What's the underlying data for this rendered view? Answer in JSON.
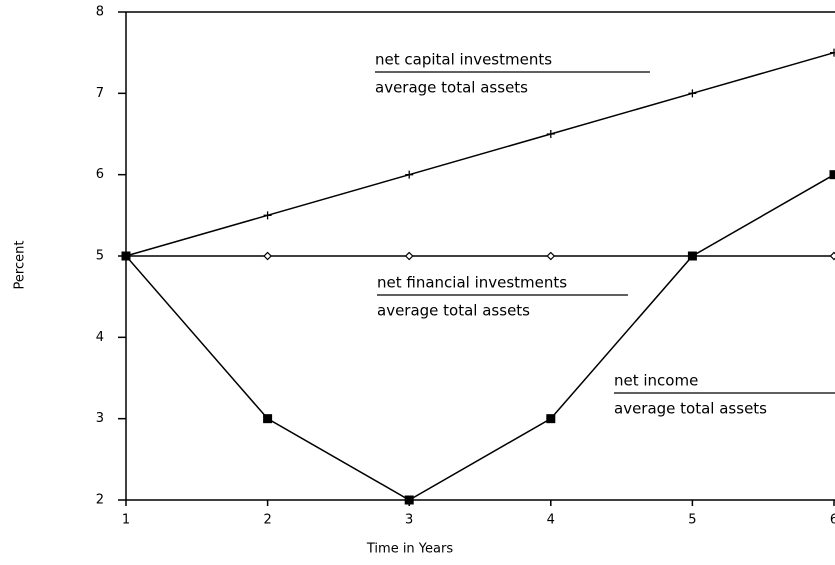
{
  "chart_data": {
    "type": "line",
    "x_label": "Time in Years",
    "y_label": "Percent",
    "x": [
      1,
      2,
      3,
      4,
      5,
      6
    ],
    "xlim": [
      1,
      6
    ],
    "ylim": [
      2,
      8
    ],
    "xticks": [
      1,
      2,
      3,
      4,
      5,
      6
    ],
    "yticks": [
      2,
      3,
      4,
      5,
      6,
      7,
      8
    ],
    "series": [
      {
        "name": "net capital investments",
        "denominator": "average total assets",
        "color": "#000000",
        "marker": "plus",
        "values": [
          5,
          5.5,
          6,
          6.5,
          7,
          7.5
        ]
      },
      {
        "name": "net financial investments",
        "denominator": "average total assets",
        "color": "#000000",
        "marker": "diamond",
        "values": [
          5,
          5,
          5,
          5,
          5,
          5
        ]
      },
      {
        "name": "net income",
        "denominator": "average total assets",
        "color": "#000000",
        "marker": "square",
        "values": [
          5,
          3,
          2,
          3,
          5,
          6
        ]
      }
    ]
  }
}
